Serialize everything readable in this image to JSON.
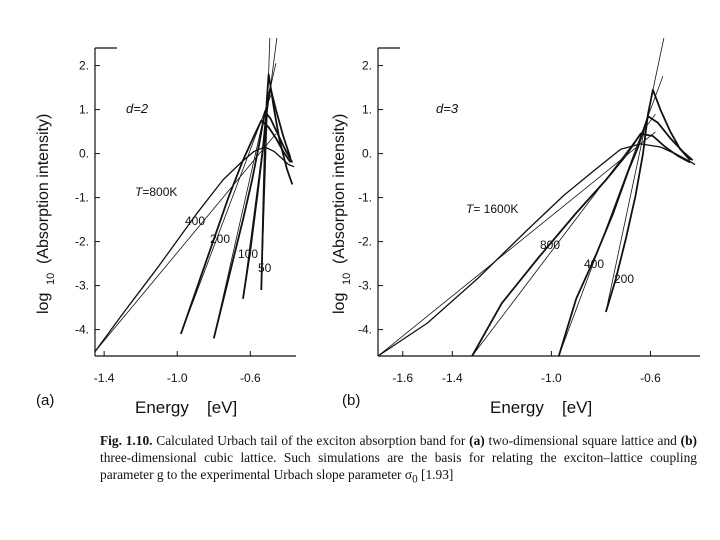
{
  "chart_data": [
    {
      "type": "line",
      "panel_label": "(a)",
      "xlabel_main": "Energy",
      "xlabel_unit": "[eV]",
      "ylabel_log": "log",
      "ylabel_sub": "10",
      "ylabel_rest": "(Absorption intensity)",
      "xlim": [
        -1.45,
        -0.35
      ],
      "ylim": [
        -4.6,
        2.4
      ],
      "x_ticks": [
        -1.4,
        -1.0,
        -0.6
      ],
      "x_tick_labels": [
        "-1.4",
        "-1.0",
        "-0.6"
      ],
      "y_ticks": [
        2,
        1,
        0,
        -1,
        -2,
        -3,
        -4
      ],
      "y_tick_labels": [
        "2.",
        "1.",
        "0.",
        "-1.",
        "-2.",
        "-3.",
        "-4."
      ],
      "annotation_d": "d=2",
      "series": [
        {
          "name": "T=800K",
          "label": "T=800K",
          "x": [
            -1.45,
            -1.3,
            -1.1,
            -0.9,
            -0.75,
            -0.65,
            -0.58,
            -0.52,
            -0.47,
            -0.43,
            -0.39,
            -0.36
          ],
          "y": [
            -4.5,
            -3.65,
            -2.55,
            -1.4,
            -0.6,
            -0.2,
            0.05,
            0.15,
            0.05,
            -0.1,
            -0.25,
            -0.3
          ]
        },
        {
          "name": "400",
          "label": "400",
          "x": [
            -0.98,
            -0.85,
            -0.72,
            -0.64,
            -0.58,
            -0.54,
            -0.5,
            -0.46,
            -0.42,
            -0.38
          ],
          "y": [
            -4.1,
            -2.55,
            -1.0,
            -0.15,
            0.4,
            0.75,
            0.6,
            0.35,
            0.05,
            -0.2
          ]
        },
        {
          "name": "200",
          "label": "200",
          "x": [
            -0.8,
            -0.72,
            -0.64,
            -0.59,
            -0.55,
            -0.52,
            -0.49,
            -0.45,
            -0.41,
            -0.37
          ],
          "y": [
            -4.2,
            -2.85,
            -1.5,
            -0.6,
            0.25,
            0.95,
            0.8,
            0.45,
            0.1,
            -0.2
          ]
        },
        {
          "name": "100",
          "label": "100",
          "x": [
            -0.64,
            -0.6,
            -0.56,
            -0.53,
            -0.51,
            -0.49,
            -0.46,
            -0.42,
            -0.38
          ],
          "y": [
            -3.3,
            -2.2,
            -0.9,
            0.15,
            1.05,
            1.5,
            1.0,
            0.4,
            -0.1
          ]
        },
        {
          "name": "50",
          "label": "50",
          "x": [
            -0.54,
            -0.53,
            -0.52,
            -0.51,
            -0.5,
            -0.49,
            -0.47,
            -0.44,
            -0.4,
            -0.37
          ],
          "y": [
            -3.1,
            -1.4,
            0.2,
            1.2,
            1.8,
            1.55,
            1.0,
            0.3,
            -0.35,
            -0.7
          ]
        }
      ]
    },
    {
      "type": "line",
      "panel_label": "(b)",
      "xlabel_main": "Energy",
      "xlabel_unit": "[eV]",
      "ylabel_log": "log",
      "ylabel_sub": "10",
      "ylabel_rest": "(Absorption intensity)",
      "xlim": [
        -1.7,
        -0.4
      ],
      "ylim": [
        -4.6,
        2.4
      ],
      "x_ticks": [
        -1.6,
        -1.4,
        -1.0,
        -0.6
      ],
      "x_tick_labels": [
        "-1.6",
        "-1.4",
        "-1.0",
        "-0.6"
      ],
      "y_ticks": [
        2,
        1,
        0,
        -1,
        -2,
        -3,
        -4
      ],
      "y_tick_labels": [
        "2.",
        "1.",
        "0.",
        "-1.",
        "-2.",
        "-3.",
        "-4."
      ],
      "annotation_d": "d=3",
      "series": [
        {
          "name": "T=1600K",
          "label": "T= 1600K",
          "x": [
            -1.7,
            -1.5,
            -1.3,
            -1.1,
            -0.95,
            -0.82,
            -0.72,
            -0.64,
            -0.56,
            -0.5,
            -0.45,
            -0.42
          ],
          "y": [
            -4.6,
            -3.85,
            -2.85,
            -1.75,
            -0.95,
            -0.35,
            0.1,
            0.22,
            0.15,
            0.0,
            -0.15,
            -0.25
          ]
        },
        {
          "name": "800",
          "label": "800",
          "x": [
            -1.32,
            -1.2,
            -1.05,
            -0.9,
            -0.78,
            -0.7,
            -0.64,
            -0.59,
            -0.54,
            -0.49,
            -0.44
          ],
          "y": [
            -4.6,
            -3.4,
            -2.35,
            -1.35,
            -0.6,
            -0.05,
            0.45,
            0.4,
            0.15,
            -0.05,
            -0.2
          ]
        },
        {
          "name": "400",
          "label": "400",
          "x": [
            -0.97,
            -0.9,
            -0.82,
            -0.75,
            -0.69,
            -0.65,
            -0.61,
            -0.57,
            -0.52,
            -0.47,
            -0.43
          ],
          "y": [
            -4.6,
            -3.3,
            -2.3,
            -1.35,
            -0.4,
            0.15,
            0.85,
            0.7,
            0.35,
            0.05,
            -0.15
          ]
        },
        {
          "name": "200",
          "label": "200",
          "x": [
            -0.78,
            -0.74,
            -0.7,
            -0.66,
            -0.63,
            -0.61,
            -0.59,
            -0.56,
            -0.52,
            -0.48,
            -0.44
          ],
          "y": [
            -3.6,
            -2.85,
            -1.95,
            -0.95,
            0.0,
            0.9,
            1.45,
            1.0,
            0.5,
            0.1,
            -0.15
          ]
        }
      ]
    }
  ],
  "caption": {
    "fig": "Fig. 1.10.",
    "t1": " Calculated Urbach tail of the exciton absorption band for ",
    "a": "(a)",
    "t2": " two-dimensional square lattice and ",
    "b": "(b)",
    "t3": " three-dimensional cubic lattice. Such simulations are the basis for relating the exciton–lattice coupling parameter g to the experimental Urbach slope parameter σ",
    "sub": "0",
    "t4": " [1.93]"
  },
  "colors": {
    "ink": "#111111",
    "paper": "#ffffff"
  }
}
